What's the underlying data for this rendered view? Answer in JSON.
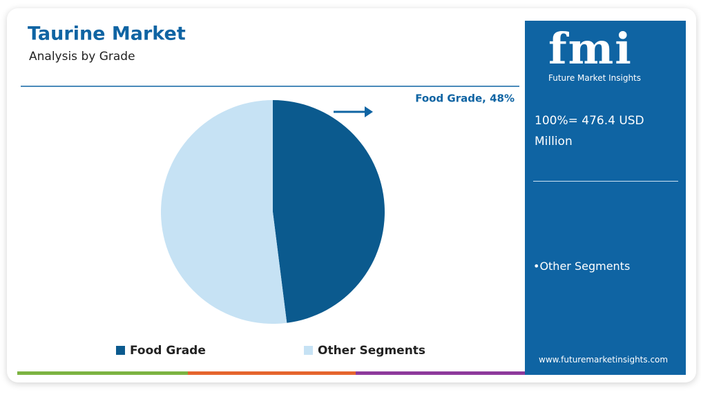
{
  "header": {
    "title": "Taurine Market",
    "subtitle": "Analysis by Grade"
  },
  "chart_data": {
    "type": "pie",
    "categories": [
      "Food Grade",
      "Other Segments"
    ],
    "values": [
      48,
      52
    ],
    "value_labels": [
      "Food Grade, 48%",
      null
    ],
    "colors": [
      "#0b5a8e",
      "#c6e2f4"
    ],
    "legend": "bottom"
  },
  "sidebar": {
    "logo": "fmi",
    "brand": "Future Market Insights",
    "total": "100%= 476.4 USD Million",
    "segments": [
      "Other Segments"
    ],
    "website": "www.futuremarketinsights.com"
  }
}
